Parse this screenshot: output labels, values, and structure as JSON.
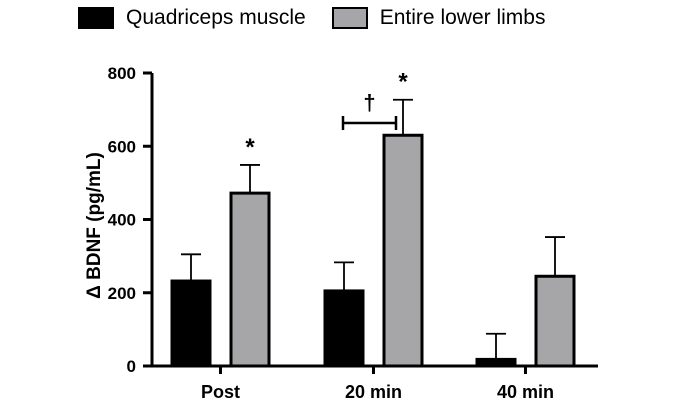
{
  "chart_data": {
    "type": "bar",
    "categories": [
      "Post",
      "20 min",
      "40 min"
    ],
    "ylabel": "Δ BDNF (pg/mL)",
    "ylim": [
      0,
      800
    ],
    "yticks": [
      0,
      200,
      400,
      600,
      800
    ],
    "grid": false,
    "legend_position": "top",
    "series": [
      {
        "name": "Quadriceps muscle",
        "color": "#000000",
        "values": [
          232,
          205,
          18
        ],
        "errors": [
          73,
          78,
          70
        ]
      },
      {
        "name": "Entire lower limbs",
        "color": "#a6a6a8",
        "values": [
          472,
          630,
          245
        ],
        "errors": [
          77,
          97,
          107
        ]
      }
    ],
    "annotations": [
      {
        "text": "*",
        "category_index": 0,
        "series_index": 1
      },
      {
        "text": "*",
        "category_index": 1,
        "series_index": 1
      },
      {
        "text": "†",
        "category_index": 1,
        "between_series": true
      }
    ]
  }
}
